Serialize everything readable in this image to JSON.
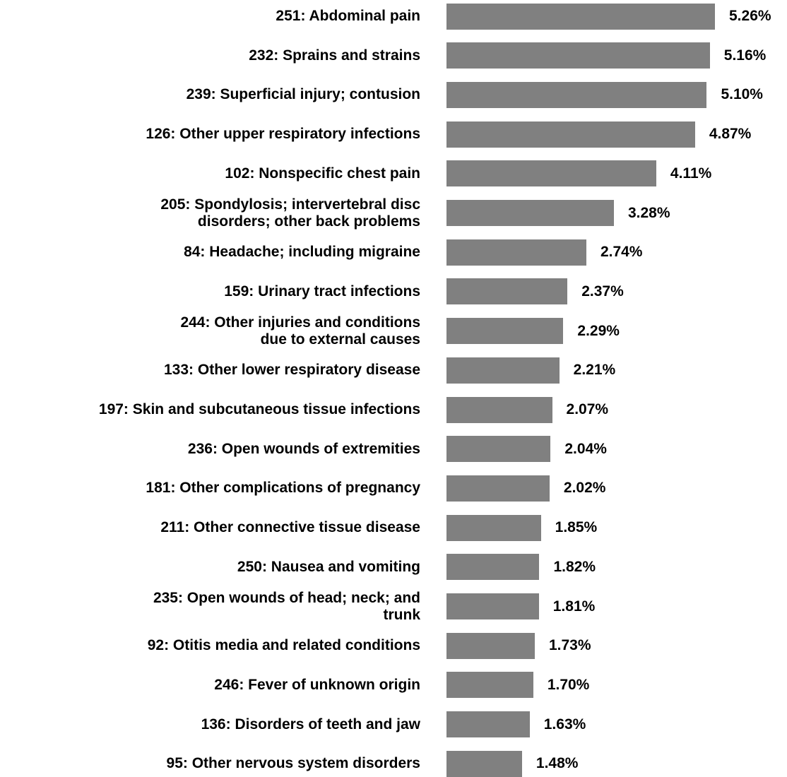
{
  "chart_data": {
    "type": "bar",
    "orientation": "horizontal",
    "color": "#808080",
    "categories": [
      "251: Abdominal pain",
      "232: Sprains and strains",
      "239: Superficial injury; contusion",
      "126: Other upper respiratory infections",
      "102: Nonspecific chest pain",
      "205: Spondylosis; intervertebral disc\ndisorders; other back problems",
      "84: Headache; including migraine",
      "159: Urinary tract infections",
      "244: Other injuries and conditions\ndue to external causes",
      "133: Other lower respiratory disease",
      "197: Skin and subcutaneous tissue infections",
      "236: Open wounds of extremities",
      "181: Other complications of pregnancy",
      "211: Other connective tissue disease",
      "250: Nausea and vomiting",
      "235: Open wounds of head; neck; and\ntrunk",
      "92: Otitis media and related conditions",
      "246: Fever of unknown origin",
      "136: Disorders of teeth and jaw",
      "95: Other nervous system disorders"
    ],
    "values": [
      5.26,
      5.16,
      5.1,
      4.87,
      4.11,
      3.28,
      2.74,
      2.37,
      2.29,
      2.21,
      2.07,
      2.04,
      2.02,
      1.85,
      1.82,
      1.81,
      1.73,
      1.7,
      1.63,
      1.48
    ],
    "value_labels": [
      "5.26%",
      "5.16%",
      "5.10%",
      "4.87%",
      "4.11%",
      "3.28%",
      "2.74%",
      "2.37%",
      "2.29%",
      "2.21%",
      "2.07%",
      "2.04%",
      "2.02%",
      "1.85%",
      "1.82%",
      "1.81%",
      "1.73%",
      "1.70%",
      "1.63%",
      "1.48%"
    ]
  }
}
